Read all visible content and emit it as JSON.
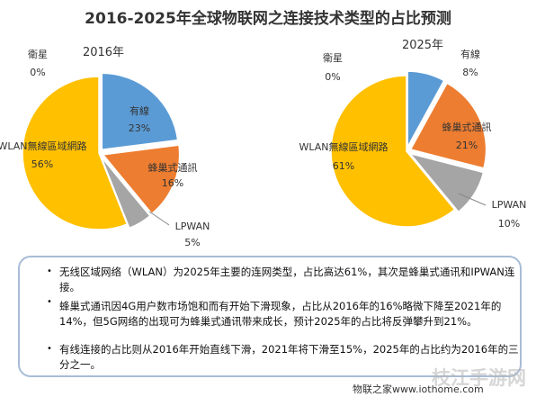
{
  "title": "2016-2025年全球物联网之连接技术类型的占比预测",
  "chart_data": [
    {
      "type": "pie",
      "title": "2016年",
      "slices": [
        {
          "label": "有線",
          "value": 23,
          "pct": "23%",
          "color": "#5b9bd5"
        },
        {
          "label": "蜂巢式通訊",
          "value": 16,
          "pct": "16%",
          "color": "#ed7d31"
        },
        {
          "label": "LPWAN",
          "value": 5,
          "pct": "5%",
          "color": "#a5a5a5"
        },
        {
          "label": "WLAN無線區域網路",
          "value": 56,
          "pct": "56%",
          "color": "#ffc000"
        },
        {
          "label": "衛星",
          "value": 0,
          "pct": "0%",
          "color": "#4472c4"
        }
      ]
    },
    {
      "type": "pie",
      "title": "2025年",
      "slices": [
        {
          "label": "有線",
          "value": 8,
          "pct": "8%",
          "color": "#5b9bd5"
        },
        {
          "label": "蜂巢式通訊",
          "value": 21,
          "pct": "21%",
          "color": "#ed7d31"
        },
        {
          "label": "LPWAN",
          "value": 10,
          "pct": "10%",
          "color": "#a5a5a5"
        },
        {
          "label": "WLAN無線區域網路",
          "value": 61,
          "pct": "61%",
          "color": "#ffc000"
        },
        {
          "label": "衛星",
          "value": 0,
          "pct": "0%",
          "color": "#4472c4"
        }
      ]
    }
  ],
  "notes": [
    "无线区域网络（WLAN）为2025年主要的连网类型，占比高达61%，其次是蜂巢式通讯和IPWAN连接。",
    "蜂巢式通讯因4G用户数市场饱和而有开始下滑现象，占比从2016年的16%略微下降至2021年的14%，但5G网络的出现可为蜂巢式通讯带来成长，预计2025年的占比将反弹攀升到21%。",
    "有线连接的占比则从2016年开始直线下滑，2021年将下滑至15%，2025年的占比约为2016年的三分之一。"
  ],
  "footer": "物联之家www.iothome.com",
  "watermark": "枝江手游网"
}
